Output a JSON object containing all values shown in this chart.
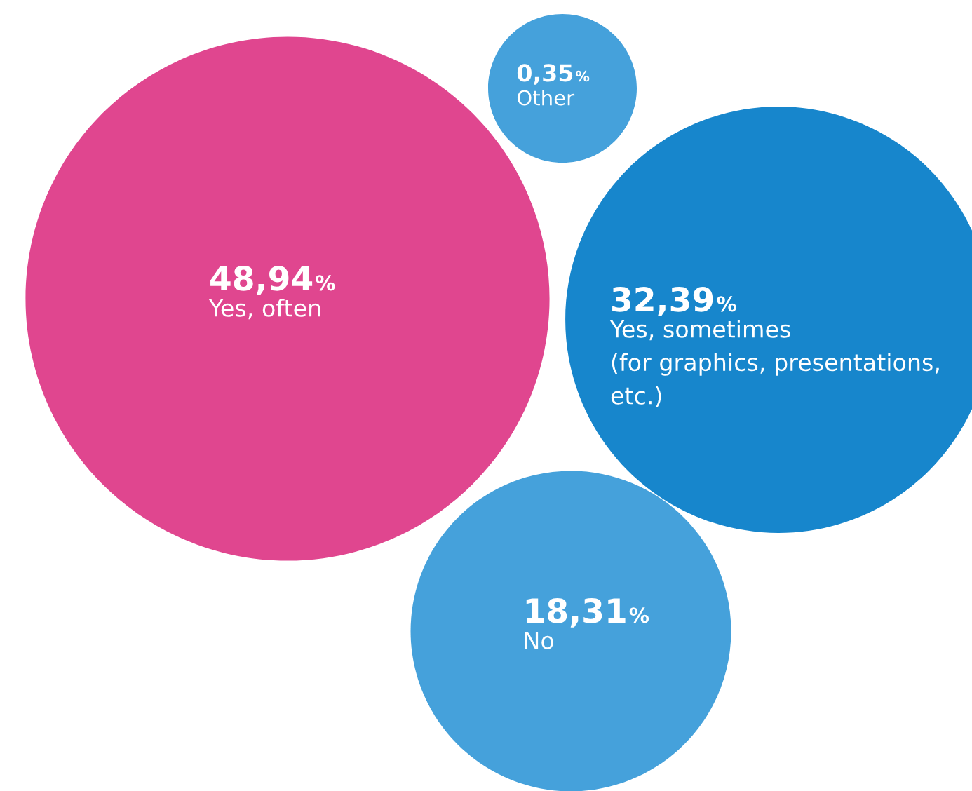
{
  "chart_data": {
    "type": "other",
    "categories": [
      "Yes, often",
      "Yes, sometimes\n(for graphics, presentations,\netc.)",
      "No",
      "Other"
    ],
    "values": [
      48.94,
      32.39,
      18.31,
      0.35
    ],
    "value_labels": [
      "48,94%",
      "32,39%",
      "18,31%",
      "0,35%"
    ],
    "colors": [
      "#e0468f",
      "#1786cc",
      "#45a1db",
      "#45a1db"
    ]
  }
}
